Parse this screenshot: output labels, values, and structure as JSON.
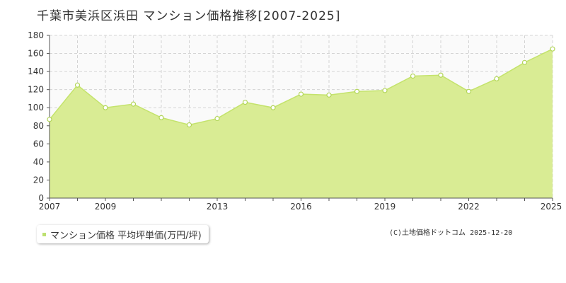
{
  "chart_data": {
    "type": "area",
    "title": "千葉市美浜区浜田 マンション価格推移[2007-2025]",
    "x": [
      2007,
      2008,
      2009,
      2010,
      2011,
      2012,
      2013,
      2014,
      2015,
      2016,
      2017,
      2018,
      2019,
      2020,
      2021,
      2022,
      2023,
      2024,
      2025
    ],
    "series": [
      {
        "name": "マンション価格 平均坪単価(万円/坪)",
        "values": [
          87,
          125,
          100,
          104,
          89,
          81,
          88,
          106,
          100,
          115,
          114,
          118,
          119,
          135,
          136,
          118,
          132,
          150,
          165
        ]
      }
    ],
    "xlim": [
      2007,
      2025
    ],
    "ylim": [
      0,
      180
    ],
    "x_ticks": [
      "2007",
      "2009",
      "2013",
      "2016",
      "2019",
      "2022",
      "2025"
    ],
    "y_ticks": [
      "0",
      "20",
      "40",
      "60",
      "80",
      "100",
      "120",
      "140",
      "160",
      "180"
    ],
    "grid": true,
    "legend": "bottom-left",
    "colors": {
      "fill": "#d9ec94",
      "line": "#c4e36c",
      "marker_fill": "#ffffff",
      "marker_stroke": "#b3d65a",
      "plot_bg": "#fafafa",
      "grid": "#d4d4d4"
    }
  },
  "legend": {
    "label": "マンション価格 平均坪単価(万円/坪)"
  },
  "copyright": "(C)土地価格ドットコム 2025-12-20"
}
